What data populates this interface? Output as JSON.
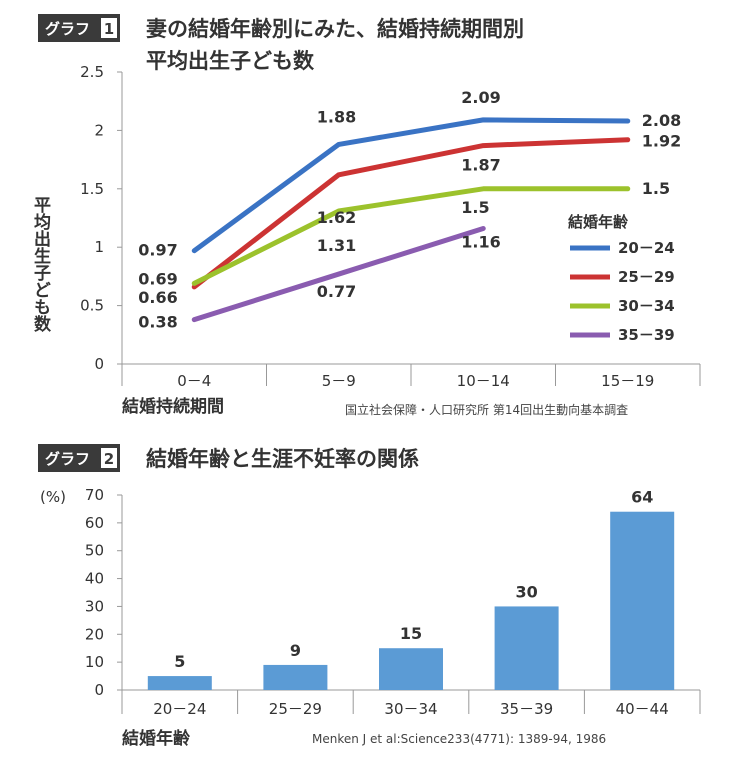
{
  "charts": [
    {
      "badge_label": "グラフ",
      "badge_number": "1",
      "title_line1": "妻の結婚年齢別にみた、結婚持続期間別",
      "title_line2": "平均出生子ども数",
      "source": "国立社会保障・人口研究所 第14回出生動向基本調査"
    },
    {
      "badge_label": "グラフ",
      "badge_number": "2",
      "title_line1": "結婚年齢と生涯不妊率の関係",
      "source": "Menken J et al:Science233(4771): 1389-94, 1986"
    }
  ],
  "chart_data": [
    {
      "type": "line",
      "title": "妻の結婚年齢別にみた、結婚持続期間別 平均出生子ども数",
      "categories": [
        "0－4",
        "5－9",
        "10－14",
        "15－19"
      ],
      "xlabel": "結婚持続期間",
      "ylabel": "平均出生子ども数",
      "ylim": [
        0,
        2.5
      ],
      "yticks": [
        "0",
        "0.5",
        "1",
        "1.5",
        "2",
        "2.5"
      ],
      "grid": false,
      "legend_title": "結婚年齢",
      "legend_position": "right",
      "series": [
        {
          "name": "20－24",
          "color": "#3a73c4",
          "values": [
            0.97,
            1.88,
            2.09,
            2.08
          ],
          "labels": [
            "0.97",
            "1.88",
            "2.09",
            "2.08"
          ]
        },
        {
          "name": "25－29",
          "color": "#cc3333",
          "values": [
            0.66,
            1.62,
            1.87,
            1.92
          ],
          "labels": [
            "0.66",
            "1.62",
            "1.87",
            "1.92"
          ]
        },
        {
          "name": "30－34",
          "color": "#9cc22c",
          "values": [
            0.69,
            1.31,
            1.5,
            1.5
          ],
          "labels": [
            "0.69",
            "1.31",
            "1.5",
            "1.5"
          ]
        },
        {
          "name": "35－39",
          "color": "#8a5cb0",
          "values": [
            0.38,
            0.77,
            1.16,
            null
          ],
          "labels": [
            "0.38",
            "0.77",
            "1.16",
            ""
          ]
        }
      ]
    },
    {
      "type": "bar",
      "title": "結婚年齢と生涯不妊率の関係",
      "categories": [
        "20－24",
        "25－29",
        "30－34",
        "35－39",
        "40－44"
      ],
      "values": [
        5,
        9,
        15,
        30,
        64
      ],
      "labels": [
        "5",
        "9",
        "15",
        "30",
        "64"
      ],
      "color": "#5b9bd5",
      "xlabel": "結婚年齢",
      "ylabel": "(%)",
      "ylim": [
        0,
        70
      ],
      "yticks": [
        "0",
        "10",
        "20",
        "30",
        "40",
        "50",
        "60",
        "70"
      ],
      "grid": false
    }
  ]
}
